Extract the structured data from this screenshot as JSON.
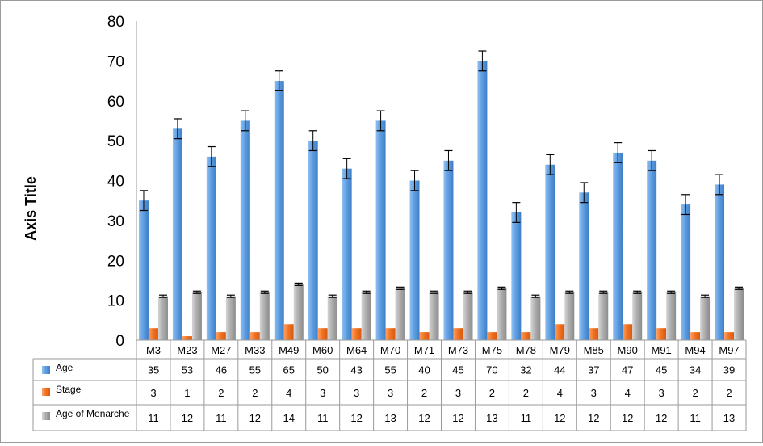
{
  "chart_data": {
    "type": "bar",
    "ylabel": "Axis Title",
    "ylim": [
      0,
      80
    ],
    "yticks": [
      0,
      10,
      20,
      30,
      40,
      50,
      60,
      70,
      80
    ],
    "grid": false,
    "legend": "data-table",
    "categories": [
      "M3",
      "M23",
      "M27",
      "M33",
      "M49",
      "M60",
      "M64",
      "M70",
      "M71",
      "M73",
      "M75",
      "M78",
      "M79",
      "M85",
      "M90",
      "M91",
      "M94",
      "M97"
    ],
    "series": [
      {
        "name": "Age",
        "color": "#4f8fd6",
        "error": 2.5,
        "values": [
          35,
          53,
          46,
          55,
          65,
          50,
          43,
          55,
          40,
          45,
          70,
          32,
          44,
          37,
          47,
          45,
          34,
          39
        ]
      },
      {
        "name": "Stage",
        "color": "#ee6a1f",
        "error": 0,
        "values": [
          3,
          1,
          2,
          2,
          4,
          3,
          3,
          3,
          2,
          3,
          2,
          2,
          4,
          3,
          4,
          3,
          2,
          2
        ]
      },
      {
        "name": "Age of Menarche",
        "color": "#a3a3a3",
        "error": 0.3,
        "values": [
          11,
          12,
          11,
          12,
          14,
          11,
          12,
          13,
          12,
          12,
          13,
          11,
          12,
          12,
          12,
          12,
          11,
          13
        ]
      }
    ]
  }
}
